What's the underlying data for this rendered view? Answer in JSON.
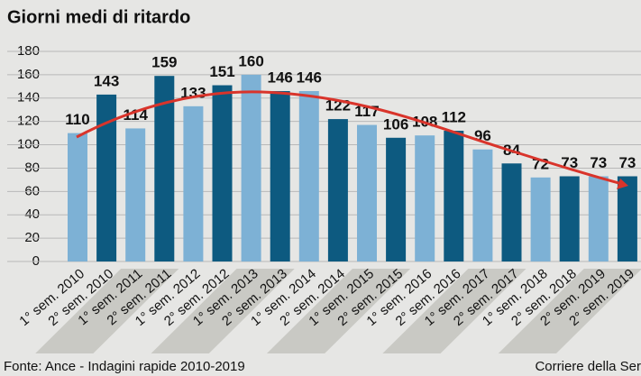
{
  "chart_data": {
    "type": "bar",
    "title": "Giorni medi di ritardo",
    "categories": [
      "1° sem. 2010",
      "2° sem. 2010",
      "1° sem. 2011",
      "2° sem. 2011",
      "1° sem. 2012",
      "2° sem. 2012",
      "1° sem. 2013",
      "2° sem. 2013",
      "1° sem. 2014",
      "2° sem. 2014",
      "1° sem. 2015",
      "2° sem. 2015",
      "1° sem. 2016",
      "2° sem. 2016",
      "1° sem. 2017",
      "2° sem. 2017",
      "1° sem. 2018",
      "2° sem. 2018",
      "2° sem. 2019",
      "2° sem. 2019"
    ],
    "values": [
      110,
      143,
      114,
      159,
      133,
      151,
      160,
      146,
      146,
      122,
      117,
      106,
      108,
      112,
      96,
      84,
      72,
      73,
      73,
      73
    ],
    "colors": [
      "#7db1d5",
      "#0d5a80"
    ],
    "ylim": [
      0,
      180
    ],
    "yticks": [
      0,
      20,
      40,
      60,
      80,
      100,
      120,
      140,
      160,
      180
    ],
    "grid": true,
    "source": "Fonte: Ance - Indagini rapide 2010-2019",
    "credit": "Corriere della Ser"
  }
}
